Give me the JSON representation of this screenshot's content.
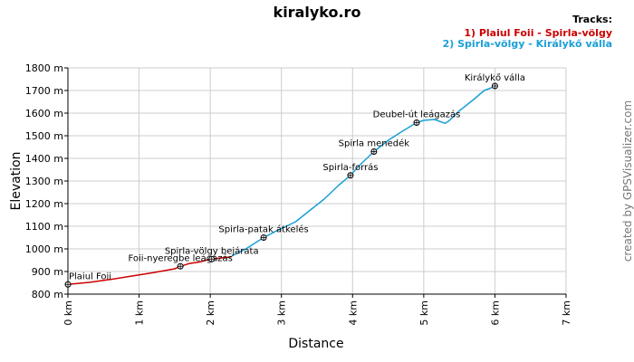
{
  "chart_data": {
    "type": "line",
    "title": "kiralyko.ro",
    "xlabel": "Distance",
    "ylabel": "Elevation",
    "xlim": [
      0,
      7
    ],
    "ylim": [
      800,
      1800
    ],
    "grid": true,
    "x_ticks": [
      {
        "value": 0,
        "label": "0 km"
      },
      {
        "value": 1,
        "label": "1 km"
      },
      {
        "value": 2,
        "label": "2 km"
      },
      {
        "value": 3,
        "label": "3 km"
      },
      {
        "value": 4,
        "label": "4 km"
      },
      {
        "value": 5,
        "label": "5 km"
      },
      {
        "value": 6,
        "label": "6 km"
      },
      {
        "value": 7,
        "label": "7 km"
      }
    ],
    "y_ticks": [
      {
        "value": 800,
        "label": "800 m"
      },
      {
        "value": 900,
        "label": "900 m"
      },
      {
        "value": 1000,
        "label": "1000 m"
      },
      {
        "value": 1100,
        "label": "1100 m"
      },
      {
        "value": 1200,
        "label": "1200 m"
      },
      {
        "value": 1300,
        "label": "1300 m"
      },
      {
        "value": 1400,
        "label": "1400 m"
      },
      {
        "value": 1500,
        "label": "1500 m"
      },
      {
        "value": 1600,
        "label": "1600 m"
      },
      {
        "value": 1700,
        "label": "1700 m"
      },
      {
        "value": 1800,
        "label": "1800 m"
      }
    ],
    "legend": {
      "heading": "Tracks:",
      "placement": "top-right",
      "entries": [
        {
          "label": "1) Plaiul Foii - Spirla-völgy",
          "color": "#cc0000"
        },
        {
          "label": "2) Spirla-völgy - Királykő válla",
          "color": "#1a9fd6"
        }
      ]
    },
    "series": [
      {
        "name": "1) Plaiul Foii - Spirla-völgy",
        "color": "#cc0000",
        "x": [
          0,
          0.3,
          0.6,
          0.9,
          1.2,
          1.5,
          1.58,
          1.7,
          1.85,
          2.0,
          2.1,
          2.3
        ],
        "y": [
          843,
          852,
          865,
          880,
          895,
          912,
          923,
          935,
          942,
          955,
          958,
          965
        ]
      },
      {
        "name": "2) Spirla-völgy - Királykő válla",
        "color": "#1a9fd6",
        "x": [
          2.3,
          2.5,
          2.6,
          2.75,
          2.9,
          3.0,
          3.2,
          3.4,
          3.6,
          3.8,
          3.97,
          4.1,
          4.3,
          4.5,
          4.7,
          4.9,
          5.0,
          5.15,
          5.3,
          5.35,
          5.5,
          5.7,
          5.85,
          5.95,
          6.0
        ],
        "y": [
          968,
          1000,
          1020,
          1050,
          1075,
          1090,
          1120,
          1170,
          1220,
          1280,
          1325,
          1370,
          1430,
          1480,
          1520,
          1558,
          1568,
          1572,
          1555,
          1565,
          1610,
          1660,
          1700,
          1712,
          1720
        ]
      }
    ],
    "waypoints": [
      {
        "name": "Plaiul Foii",
        "x": 0.0,
        "y": 843
      },
      {
        "name": "Foii-nyeregbe leágazás",
        "x": 1.58,
        "y": 923
      },
      {
        "name": "Spirla-völgy bejárata",
        "x": 2.02,
        "y": 955
      },
      {
        "name": "Spirla-patak átkelés",
        "x": 2.75,
        "y": 1050
      },
      {
        "name": "Spirla-forrás",
        "x": 3.97,
        "y": 1325
      },
      {
        "name": "Spirla menedék",
        "x": 4.3,
        "y": 1430
      },
      {
        "name": "Deubel-út leágazás",
        "x": 4.9,
        "y": 1558
      },
      {
        "name": "Királykő válla",
        "x": 6.0,
        "y": 1720
      }
    ]
  },
  "credit": "created by GPSVisualizer.com"
}
